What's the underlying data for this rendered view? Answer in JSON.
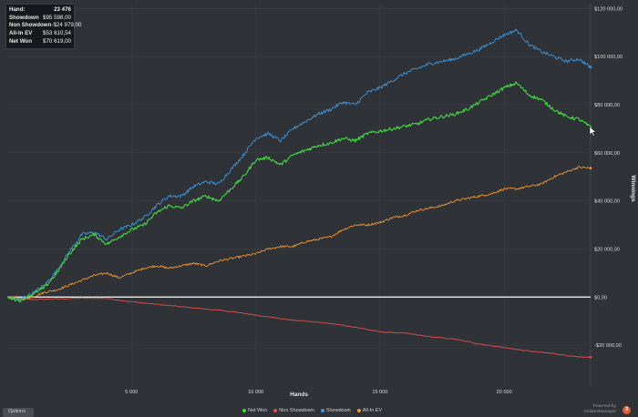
{
  "tooltip": {
    "rows": [
      {
        "label": "Hand:",
        "value": "23 476"
      },
      {
        "label": "Showdown",
        "value": "$95 598,00"
      },
      {
        "label": "Non Showdown",
        "value": "-$24 979,00"
      },
      {
        "label": "All-In EV",
        "value": "$53 610,54"
      },
      {
        "label": "Net Won",
        "value": "$70 619,00"
      }
    ]
  },
  "footer": {
    "options_label": "Options",
    "powered_by": "Powered by",
    "brand": "HoldemManager",
    "logo_text": "3"
  },
  "colors": {
    "background": "#2f3236",
    "grid": "#3d4146",
    "zero_line": "#ffffff",
    "net_won": "#3ddc3d",
    "non_showdown": "#e0504a",
    "showdown": "#3d95dd",
    "allin_ev": "#f0962e"
  },
  "chart_data": {
    "type": "line",
    "xlabel": "Hands",
    "ylabel": "Winnings",
    "xlim": [
      0,
      23476
    ],
    "ylim": [
      -37000,
      122000
    ],
    "x_ticks": [
      5000,
      10000,
      15000,
      20000
    ],
    "x_tick_labels": [
      "5 000",
      "10 000",
      "15 000",
      "20 000"
    ],
    "y_ticks": [
      -20000,
      0,
      20000,
      40000,
      60000,
      80000,
      100000,
      120000
    ],
    "y_tick_labels": [
      "-$20 000,00",
      "$0,00",
      "$20 000,00",
      "$40 000,00",
      "$60 000,00",
      "$80 000,00",
      "$100 000,00",
      "$120 000,00"
    ],
    "grid": true,
    "legend_position": "bottom-center",
    "series": [
      {
        "name": "Net Won",
        "color": "#3ddc3d",
        "x": [
          0,
          500,
          1000,
          1500,
          2000,
          2500,
          3000,
          3500,
          4000,
          4500,
          5000,
          5500,
          6000,
          6500,
          7000,
          7500,
          8000,
          8500,
          9000,
          9500,
          10000,
          10500,
          11000,
          11500,
          12000,
          12500,
          13000,
          13500,
          14000,
          14500,
          15000,
          15500,
          16000,
          16500,
          17000,
          17500,
          18000,
          18500,
          19000,
          19500,
          20000,
          20500,
          21000,
          21500,
          22000,
          22500,
          23000,
          23476
        ],
        "y": [
          0,
          -1500,
          1000,
          4000,
          10000,
          18000,
          24000,
          26000,
          22000,
          25000,
          28000,
          30000,
          35000,
          38000,
          37000,
          40000,
          42000,
          40000,
          45000,
          50000,
          57000,
          58000,
          55000,
          59000,
          61000,
          63000,
          64000,
          66000,
          65000,
          68000,
          69000,
          70000,
          71000,
          72000,
          74000,
          75000,
          76000,
          78000,
          81000,
          84000,
          87000,
          89000,
          84000,
          82000,
          78000,
          75000,
          74000,
          70619
        ]
      },
      {
        "name": "Non Showdown",
        "color": "#e0504a",
        "x": [
          0,
          1000,
          2000,
          3000,
          4000,
          5000,
          6000,
          7000,
          8000,
          9000,
          10000,
          11000,
          12000,
          13000,
          14000,
          15000,
          16000,
          17000,
          18000,
          19000,
          20000,
          21000,
          22000,
          23000,
          23476
        ],
        "y": [
          0,
          -1000,
          -800,
          -500,
          -600,
          -2000,
          -3000,
          -4000,
          -5000,
          -6000,
          -7500,
          -9000,
          -10000,
          -11000,
          -12500,
          -14500,
          -15000,
          -16500,
          -17500,
          -19500,
          -21000,
          -22500,
          -23500,
          -25000,
          -24979
        ]
      },
      {
        "name": "Showdown",
        "color": "#3d95dd",
        "x": [
          0,
          500,
          1000,
          1500,
          2000,
          2500,
          3000,
          3500,
          4000,
          4500,
          5000,
          5500,
          6000,
          6500,
          7000,
          7500,
          8000,
          8500,
          9000,
          9500,
          10000,
          10500,
          11000,
          11500,
          12000,
          12500,
          13000,
          13500,
          14000,
          14500,
          15000,
          15500,
          16000,
          16500,
          17000,
          17500,
          18000,
          18500,
          19000,
          19500,
          20000,
          20500,
          21000,
          21500,
          22000,
          22500,
          23000,
          23476
        ],
        "y": [
          0,
          -1000,
          1500,
          5000,
          11000,
          19000,
          26000,
          27000,
          24000,
          28000,
          30000,
          33000,
          38000,
          42000,
          42000,
          46000,
          48000,
          47000,
          53000,
          59000,
          66000,
          68000,
          65000,
          70000,
          73000,
          76000,
          78000,
          81000,
          80000,
          85000,
          87000,
          90000,
          93000,
          95000,
          97000,
          98000,
          99000,
          101000,
          103000,
          106000,
          109000,
          111000,
          105000,
          102000,
          100000,
          98000,
          99000,
          95598
        ]
      },
      {
        "name": "All-In EV",
        "color": "#f0962e",
        "x": [
          0,
          500,
          1000,
          1500,
          2000,
          2500,
          3000,
          3500,
          4000,
          4500,
          5000,
          5500,
          6000,
          6500,
          7000,
          7500,
          8000,
          8500,
          9000,
          9500,
          10000,
          10500,
          11000,
          11500,
          12000,
          12500,
          13000,
          13500,
          14000,
          14500,
          15000,
          15500,
          16000,
          16500,
          17000,
          17500,
          18000,
          18500,
          19000,
          19500,
          20000,
          20500,
          21000,
          21500,
          22000,
          22500,
          23000,
          23476
        ],
        "y": [
          0,
          -1000,
          0,
          2000,
          3000,
          5000,
          7000,
          9000,
          10000,
          8000,
          10000,
          12000,
          13000,
          12000,
          13000,
          14000,
          13000,
          15000,
          16000,
          17000,
          18000,
          20000,
          21000,
          21000,
          23000,
          24000,
          25000,
          28000,
          30000,
          30000,
          31000,
          33000,
          34000,
          36000,
          37000,
          38000,
          40000,
          41000,
          42000,
          43000,
          45000,
          45000,
          46000,
          47000,
          50000,
          52000,
          54000,
          53611
        ]
      }
    ]
  }
}
